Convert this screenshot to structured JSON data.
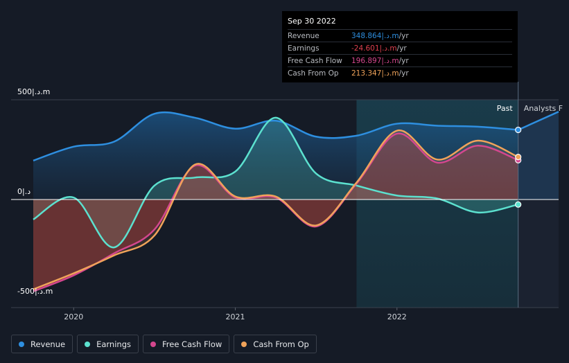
{
  "chart_data": {
    "type": "area",
    "y_axis_labels": [
      "500|.د.m",
      "0|.د",
      "-500|.د.m"
    ],
    "ylim": [
      -500,
      500
    ],
    "x_ticks": [
      "2020",
      "2021",
      "2022"
    ],
    "region_labels": {
      "past": "Past",
      "forecast": "Analysts F"
    },
    "series": [
      {
        "name": "Revenue",
        "color": "#2e8fe0",
        "x": [
          2019.75,
          2020.0,
          2020.25,
          2020.5,
          2020.75,
          2021.0,
          2021.25,
          2021.5,
          2021.75,
          2022.0,
          2022.25,
          2022.5,
          2022.75
        ],
        "values": [
          195,
          265,
          290,
          430,
          410,
          355,
          395,
          315,
          320,
          380,
          370,
          365,
          349
        ]
      },
      {
        "name": "Earnings",
        "color": "#5ce1cf",
        "x": [
          2019.75,
          2020.0,
          2020.25,
          2020.5,
          2020.75,
          2021.0,
          2021.25,
          2021.5,
          2021.75,
          2022.0,
          2022.25,
          2022.5,
          2022.75
        ],
        "values": [
          -100,
          10,
          -240,
          70,
          110,
          140,
          410,
          130,
          70,
          20,
          5,
          -65,
          -25
        ]
      },
      {
        "name": "Free Cash Flow",
        "color": "#d4478e",
        "x": [
          2019.75,
          2020.0,
          2020.25,
          2020.5,
          2020.75,
          2021.0,
          2021.25,
          2021.5,
          2021.75,
          2022.0,
          2022.25,
          2022.5,
          2022.75
        ],
        "values": [
          -460,
          -380,
          -270,
          -150,
          170,
          10,
          10,
          -135,
          80,
          330,
          185,
          270,
          197
        ]
      },
      {
        "name": "Cash From Op",
        "color": "#f0a35a",
        "x": [
          2019.75,
          2020.0,
          2020.25,
          2020.5,
          2020.75,
          2021.0,
          2021.25,
          2021.5,
          2021.75,
          2022.0,
          2022.25,
          2022.5,
          2022.75
        ],
        "values": [
          -450,
          -370,
          -280,
          -180,
          175,
          15,
          15,
          -130,
          85,
          345,
          200,
          295,
          213
        ]
      }
    ],
    "forecast_series": {
      "name": "Revenue",
      "x": [
        2022.75,
        2023.0
      ],
      "values": [
        349,
        440
      ]
    }
  },
  "tooltip": {
    "date": "Sep 30 2022",
    "rows": [
      {
        "label": "Revenue",
        "value": "348.864|.د.m",
        "unit": "/yr",
        "color": "#2e8fe0"
      },
      {
        "label": "Earnings",
        "value": "-24.601|.د.m",
        "unit": "/yr",
        "color": "#e0414f"
      },
      {
        "label": "Free Cash Flow",
        "value": "196.897|.د.m",
        "unit": "/yr",
        "color": "#d4478e"
      },
      {
        "label": "Cash From Op",
        "value": "213.347|.د.m",
        "unit": "/yr",
        "color": "#f0a35a"
      }
    ]
  },
  "legend": [
    {
      "label": "Revenue",
      "color": "#2e8fe0"
    },
    {
      "label": "Earnings",
      "color": "#5ce1cf"
    },
    {
      "label": "Free Cash Flow",
      "color": "#d4478e"
    },
    {
      "label": "Cash From Op",
      "color": "#f0a35a"
    }
  ]
}
